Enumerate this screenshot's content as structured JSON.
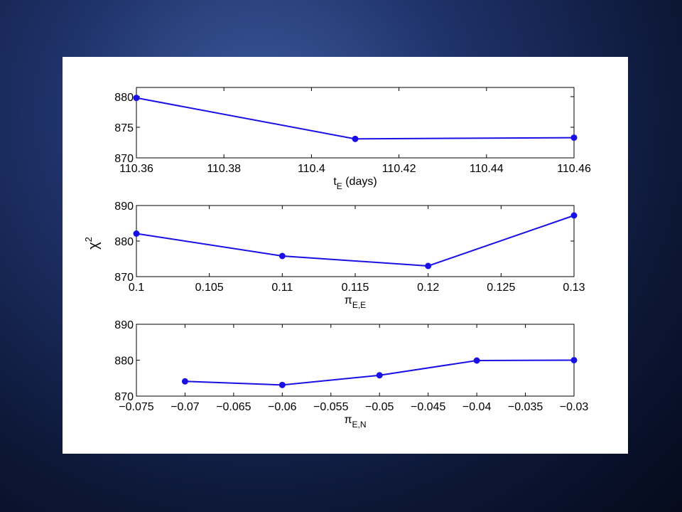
{
  "chart_data": {
    "type": "line",
    "shared_ylabel": "χ",
    "shared_ylabel_sup": "2",
    "line_color": "#1a10e6",
    "grid": false,
    "panels": [
      {
        "type": "line",
        "xlabel_main": "t",
        "xlabel_sub": "E",
        "xlabel_suffix": " (days)",
        "xlim": [
          110.36,
          110.46
        ],
        "ylim": [
          870,
          881.5
        ],
        "xticks": [
          110.36,
          110.38,
          110.4,
          110.42,
          110.44,
          110.46
        ],
        "xtick_labels": [
          "110.36",
          "110.38",
          "110.4",
          "110.42",
          "110.44",
          "110.46"
        ],
        "yticks": [
          870,
          875,
          880
        ],
        "ytick_labels": [
          "870",
          "875",
          "880"
        ],
        "points": [
          [
            110.36,
            879.8
          ],
          [
            110.41,
            873.1
          ],
          [
            110.46,
            873.3
          ]
        ]
      },
      {
        "type": "line",
        "xlabel_main": "π",
        "xlabel_sub": "E,E",
        "xlabel_suffix": "",
        "xlim": [
          0.1,
          0.13
        ],
        "ylim": [
          870,
          890
        ],
        "xticks": [
          0.1,
          0.105,
          0.11,
          0.115,
          0.12,
          0.125,
          0.13
        ],
        "xtick_labels": [
          "0.1",
          "0.105",
          "0.11",
          "0.115",
          "0.12",
          "0.125",
          "0.13"
        ],
        "yticks": [
          870,
          880,
          890
        ],
        "ytick_labels": [
          "870",
          "880",
          "890"
        ],
        "points": [
          [
            0.1,
            882.1
          ],
          [
            0.11,
            875.8
          ],
          [
            0.12,
            873.0
          ],
          [
            0.13,
            887.2
          ]
        ]
      },
      {
        "type": "line",
        "xlabel_main": "π",
        "xlabel_sub": "E,N",
        "xlabel_suffix": "",
        "xlim": [
          -0.075,
          -0.03
        ],
        "ylim": [
          870,
          890
        ],
        "xticks": [
          -0.075,
          -0.07,
          -0.065,
          -0.06,
          -0.055,
          -0.05,
          -0.045,
          -0.04,
          -0.035,
          -0.03
        ],
        "xtick_labels": [
          "−0.075",
          "−0.07",
          "−0.065",
          "−0.06",
          "−0.055",
          "−0.05",
          "−0.045",
          "−0.04",
          "−0.035",
          "−0.03"
        ],
        "yticks": [
          870,
          880,
          890
        ],
        "ytick_labels": [
          "870",
          "880",
          "890"
        ],
        "points": [
          [
            -0.07,
            874.1
          ],
          [
            -0.06,
            873.1
          ],
          [
            -0.05,
            875.8
          ],
          [
            -0.04,
            879.9
          ],
          [
            -0.03,
            880.0
          ]
        ]
      }
    ]
  }
}
